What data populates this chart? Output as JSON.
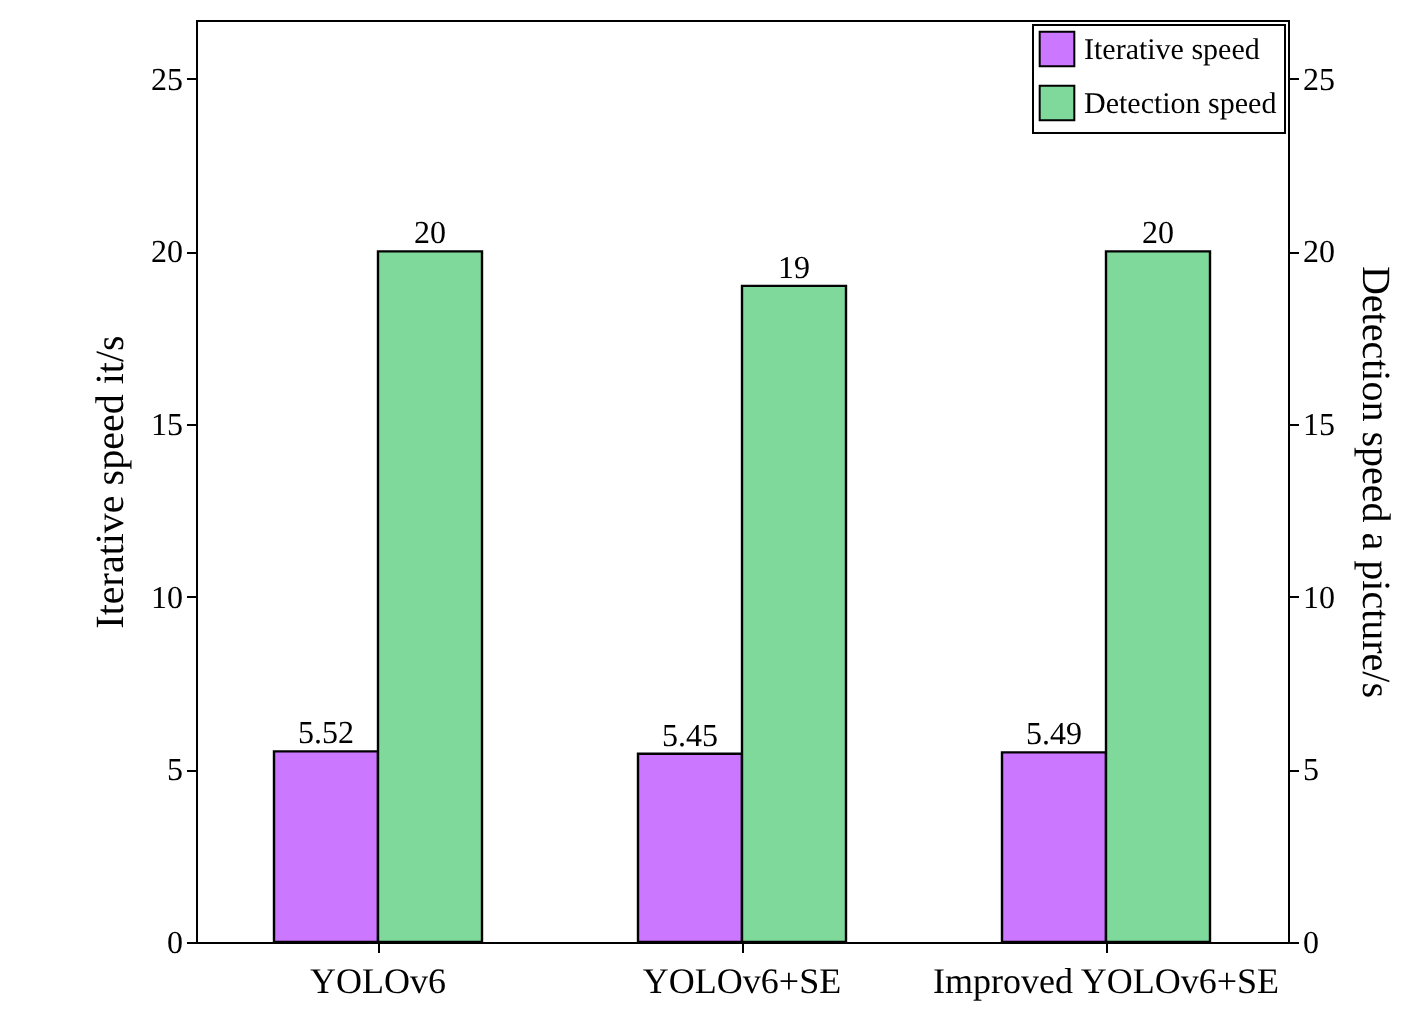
{
  "chart_data": {
    "type": "bar",
    "categories": [
      "YOLOv6",
      "YOLOv6+SE",
      "Improved YOLOv6+SE"
    ],
    "series": [
      {
        "name": "Iterative speed",
        "color": "#cc77ff",
        "values": [
          5.52,
          5.45,
          5.49
        ]
      },
      {
        "name": "Detection speed",
        "color": "#7fd99a",
        "values": [
          20,
          19,
          20
        ],
        "axis": "y2"
      }
    ],
    "ylabel": "Iterative speed   it/s",
    "y2label": "Detection speed   a picture/s",
    "ylim": [
      0,
      26.7
    ],
    "yticks": [
      0,
      5,
      10,
      15,
      20,
      25
    ],
    "y2lim": [
      0,
      26.7
    ],
    "y2ticks": [
      0,
      5,
      10,
      15,
      20,
      25
    ],
    "data_labels": true,
    "legend": "top right"
  }
}
